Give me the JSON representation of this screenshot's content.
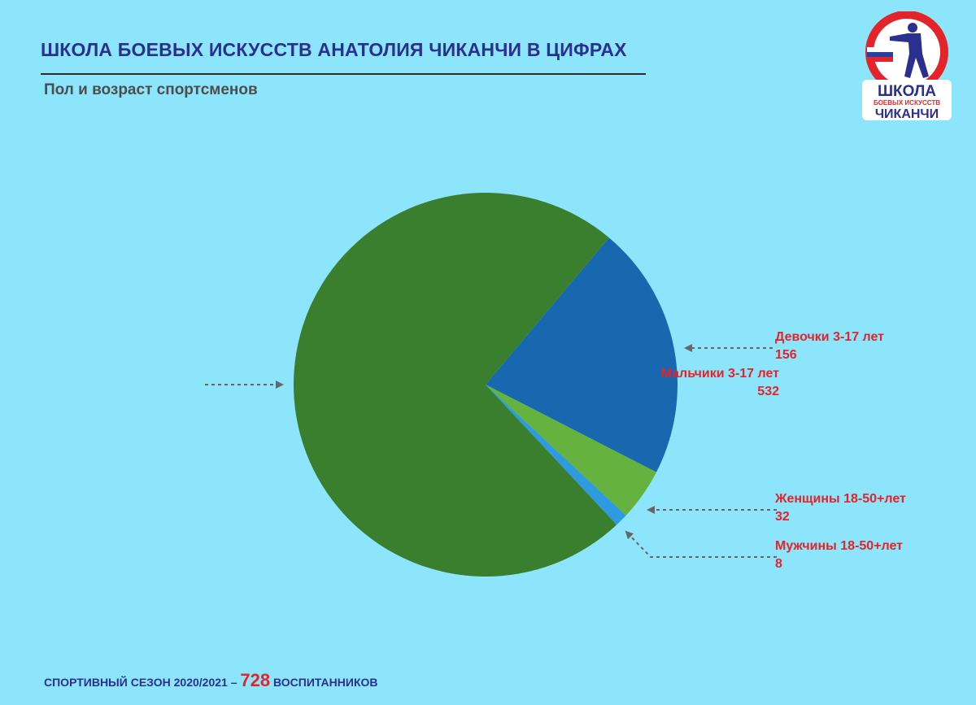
{
  "header": {
    "title": "ШКОЛА БОЕВЫХ ИСКУССТВ АНАТОЛИЯ ЧИКАНЧИ В ЦИФРАХ",
    "subtitle": "Пол и возраст спортсменов"
  },
  "logo": {
    "line1": "ШКОЛА",
    "line2": "БОЕВЫХ ИСКУССТВ",
    "line3": "ЧИКАНЧИ",
    "colors": {
      "ring": "#e3242b",
      "text": "#2b2f8f"
    }
  },
  "chart_data": {
    "type": "pie",
    "title": "",
    "slices": [
      {
        "label": "Девочки 3-17 лет",
        "value": 156,
        "color": "#1868b0"
      },
      {
        "label": "Женщины 18-50+лет",
        "value": 32,
        "color": "#65b23f"
      },
      {
        "label": "Мужчины 18-50+лет",
        "value": 8,
        "color": "#2e9ae0"
      },
      {
        "label": "Мальчики 3-17 лет",
        "value": 532,
        "color": "#3a7f2e"
      }
    ],
    "label_color": "#e3242b"
  },
  "footer": {
    "prefix": "СПОРТИВНЫЙ СЕЗОН 2020/2021 –",
    "total": "728",
    "suffix": "ВОСПИТАННИКОВ"
  }
}
